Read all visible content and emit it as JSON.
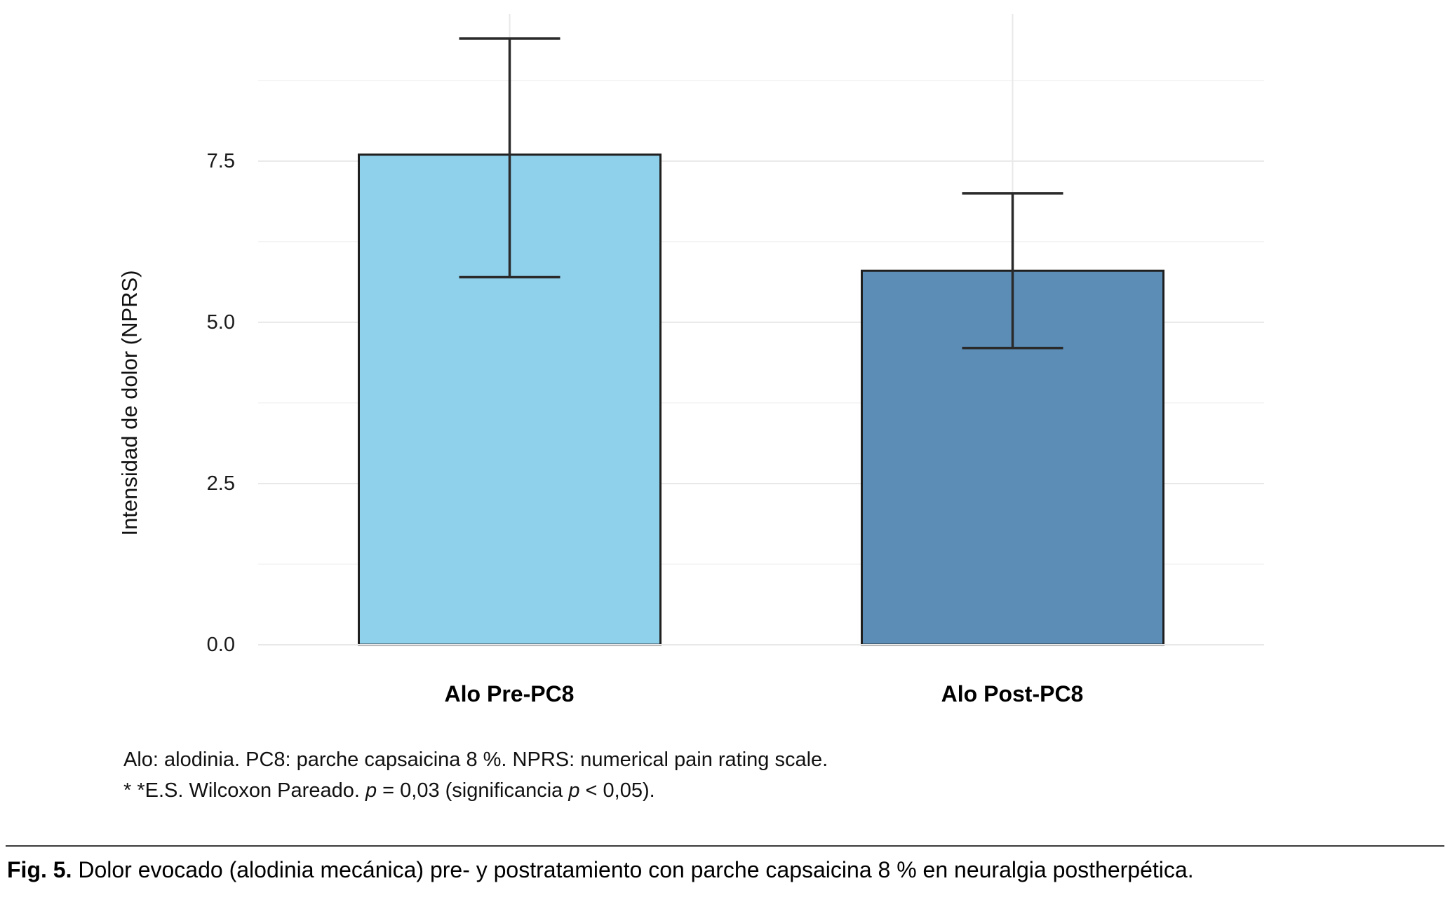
{
  "figure": {
    "footnote_lines": [
      {
        "segments": [
          {
            "text": "Alo: alodinia. PC8: parche capsaicina 8 %. NPRS: numerical pain rating scale.",
            "italic": false,
            "bold": false
          }
        ]
      },
      {
        "segments": [
          {
            "text": "* *E.S. Wilcoxon Pareado. ",
            "italic": false,
            "bold": false
          },
          {
            "text": "p",
            "italic": true,
            "bold": false
          },
          {
            "text": " = 0,03 (significancia ",
            "italic": false,
            "bold": false
          },
          {
            "text": "p",
            "italic": true,
            "bold": false
          },
          {
            "text": " < 0,05).",
            "italic": false,
            "bold": false
          }
        ]
      }
    ],
    "caption": {
      "segments": [
        {
          "text": "Fig. 5.",
          "italic": false,
          "bold": true
        },
        {
          "text": " Dolor evocado (alodinia mecánica)  pre- y postratamiento con parche capsaicina 8 % en neuralgia postherpética.",
          "italic": false,
          "bold": false
        }
      ]
    }
  },
  "chart_data": {
    "type": "bar",
    "title": "",
    "xlabel": "",
    "ylabel": "Intensidad de dolor (NPRS)",
    "categories": [
      "Alo Pre-PC8",
      "Alo Post-PC8"
    ],
    "values": [
      7.6,
      5.8
    ],
    "error_bars": [
      {
        "low": 5.7,
        "high": 9.4
      },
      {
        "low": 4.6,
        "high": 7.0
      }
    ],
    "ylim": [
      0,
      9.78
    ],
    "yticks": [
      0.0,
      2.5,
      5.0,
      7.5
    ],
    "ytick_labels": [
      "0.0",
      "2.5",
      "5.0",
      "7.5"
    ],
    "bar_colors": [
      "#8fd0eb",
      "#5b8db6"
    ],
    "bar_border_color": "#1f1f1f",
    "error_bar_color": "#2a2a2a",
    "grid": {
      "major_color": "#e8e8e8",
      "minor_color": "#f3f3f3",
      "minor_ticks": [
        1.25,
        3.75,
        6.25,
        8.75
      ],
      "vertical_at_categories": true
    },
    "legend": "none",
    "background": "#ffffff"
  }
}
